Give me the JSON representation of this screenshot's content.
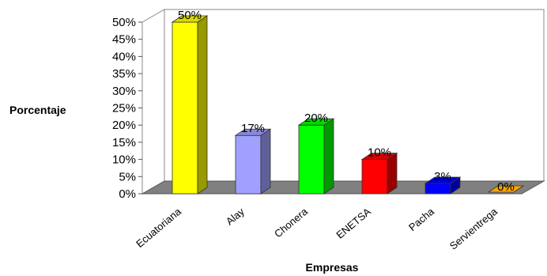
{
  "chart_data": {
    "type": "bar",
    "categories": [
      "Ecuatoriana",
      "Alay",
      "Chonera",
      "ENETSA",
      "Pacha",
      "Servientrega"
    ],
    "values": [
      50,
      17,
      20,
      10,
      3,
      0
    ],
    "data_labels": [
      "50%",
      "17%",
      "20%",
      "10%",
      "3%",
      "0%"
    ],
    "ylabel": "Porcentaje",
    "xlabel": "Empresas",
    "ylim": [
      0,
      50
    ],
    "yticks": [
      "0%",
      "5%",
      "10%",
      "15%",
      "20%",
      "25%",
      "30%",
      "35%",
      "40%",
      "45%",
      "50%"
    ],
    "grid": false,
    "legend": "none",
    "bar_colors": [
      "#ffff00",
      "#a0a0ff",
      "#00ff00",
      "#ff0000",
      "#0000ff",
      "#ffa500"
    ]
  }
}
